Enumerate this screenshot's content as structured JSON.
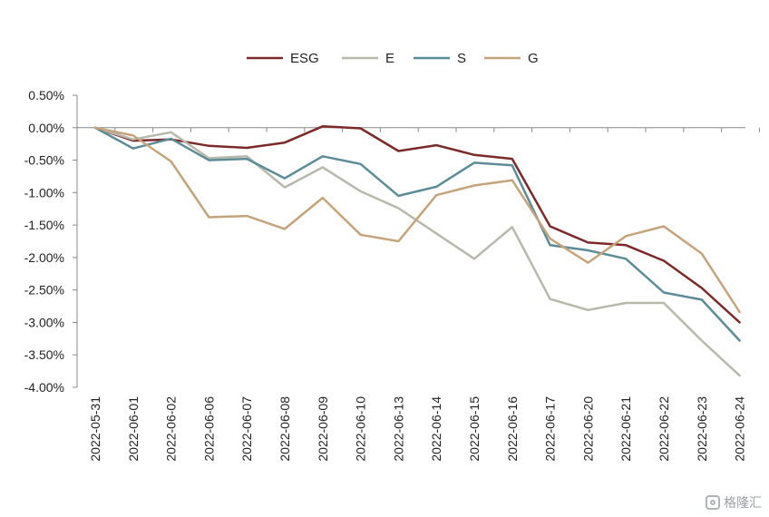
{
  "chart_data": {
    "type": "line",
    "categories": [
      "2022-05-31",
      "2022-06-01",
      "2022-06-02",
      "2022-06-06",
      "2022-06-07",
      "2022-06-08",
      "2022-06-09",
      "2022-06-10",
      "2022-06-13",
      "2022-06-14",
      "2022-06-15",
      "2022-06-16",
      "2022-06-17",
      "2022-06-20",
      "2022-06-21",
      "2022-06-22",
      "2022-06-23",
      "2022-06-24"
    ],
    "yticks": [
      "0.50%",
      "0.00%",
      "-0.50%",
      "-1.00%",
      "-1.50%",
      "-2.00%",
      "-2.50%",
      "-3.00%",
      "-3.50%",
      "-4.00%"
    ],
    "ylim": [
      -4.0,
      0.5
    ],
    "ytick_step": 0.5,
    "grid": false,
    "legend_position": "top-center",
    "series": [
      {
        "name": "ESG",
        "color": "#7b2a2a",
        "values": [
          0.0,
          -0.2,
          -0.18,
          -0.28,
          -0.31,
          -0.23,
          0.02,
          -0.01,
          -0.36,
          -0.27,
          -0.42,
          -0.48,
          -1.52,
          -1.77,
          -1.81,
          -2.05,
          -2.47,
          -3.0
        ]
      },
      {
        "name": "E",
        "color": "#b8b8ac",
        "values": [
          0.0,
          -0.18,
          -0.07,
          -0.47,
          -0.44,
          -0.92,
          -0.61,
          -0.98,
          -1.24,
          -1.63,
          -2.02,
          -1.53,
          -2.64,
          -2.81,
          -2.7,
          -2.7,
          -3.28,
          -3.82
        ]
      },
      {
        "name": "S",
        "color": "#5e8c96",
        "values": [
          0.0,
          -0.32,
          -0.17,
          -0.5,
          -0.48,
          -0.78,
          -0.44,
          -0.56,
          -1.05,
          -0.91,
          -0.54,
          -0.58,
          -1.81,
          -1.89,
          -2.02,
          -2.54,
          -2.65,
          -3.28
        ]
      },
      {
        "name": "G",
        "color": "#c4a47c",
        "values": [
          0.0,
          -0.12,
          -0.52,
          -1.38,
          -1.36,
          -1.56,
          -1.08,
          -1.65,
          -1.75,
          -1.04,
          -0.89,
          -0.81,
          -1.71,
          -2.08,
          -1.67,
          -1.52,
          -1.94,
          -2.84
        ]
      }
    ]
  },
  "watermark": {
    "text": "格隆汇",
    "icon": "gelonghui-logo-icon"
  }
}
